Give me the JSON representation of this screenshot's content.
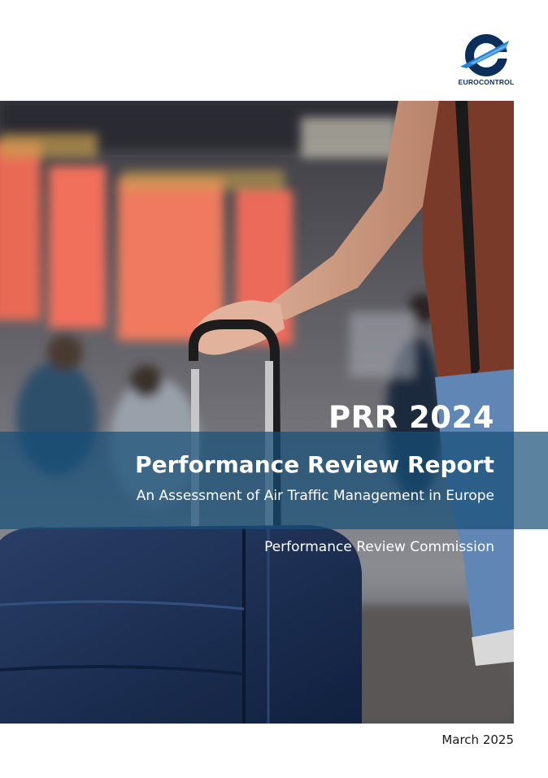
{
  "header": {
    "logo_text": "EUROCONTROL",
    "logo_icon": "eurocontrol-e-icon"
  },
  "cover": {
    "image": "traveller-with-suitcase-at-airport",
    "edition": "PRR 2024",
    "title": "Performance Review Report",
    "subtitle": "An Assessment of Air Traffic Management in Europe",
    "commission": "Performance Review Commission"
  },
  "footer": {
    "date": "March 2025"
  },
  "colors": {
    "brand_navy": "#0b2e5a",
    "brand_blue": "#1f84d6",
    "band_blue": "#164e78"
  }
}
